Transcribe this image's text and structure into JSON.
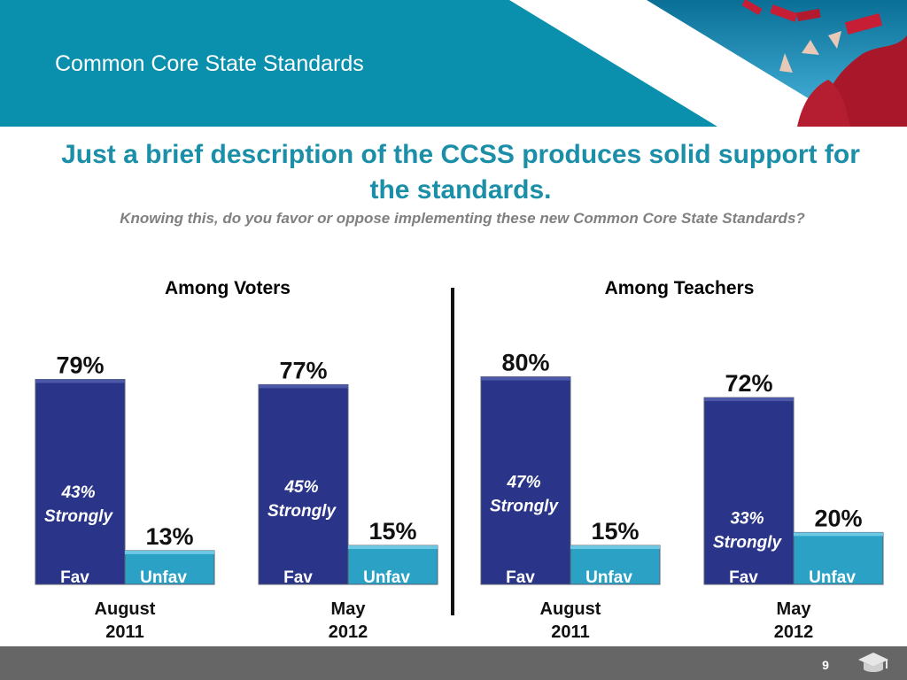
{
  "header": {
    "title": "Common Core State Standards"
  },
  "headline": "Just a brief description of the CCSS produces solid support for the standards.",
  "question": "Knowing this, do you favor or oppose implementing these new Common Core State Standards?",
  "footer": {
    "page_number": "9",
    "logo_icon": "graduation-cap-icon"
  },
  "colors": {
    "header_teal": "#0a8fad",
    "headline_teal": "#1b8fa8",
    "fav_bar": "#2a3589",
    "unfav_bar": "#2aa1c5",
    "footer": "#666666"
  },
  "chart_data": {
    "type": "bar",
    "ylim": [
      0,
      100
    ],
    "panels": [
      {
        "label": "Among Voters",
        "groups": [
          {
            "category": [
              "August",
              "2011"
            ],
            "fav": {
              "label": "Fav",
              "value": 79,
              "value_label": "79%",
              "strongly": 43,
              "strongly_label": [
                "43%",
                "Strongly"
              ]
            },
            "unfav": {
              "label": "Unfav",
              "value": 13,
              "value_label": "13%"
            }
          },
          {
            "category": [
              "May",
              "2012"
            ],
            "fav": {
              "label": "Fav",
              "value": 77,
              "value_label": "77%",
              "strongly": 45,
              "strongly_label": [
                "45%",
                "Strongly"
              ]
            },
            "unfav": {
              "label": "Unfav",
              "value": 15,
              "value_label": "15%"
            }
          }
        ]
      },
      {
        "label": "Among Teachers",
        "groups": [
          {
            "category": [
              "August",
              "2011"
            ],
            "fav": {
              "label": "Fav",
              "value": 80,
              "value_label": "80%",
              "strongly": 47,
              "strongly_label": [
                "47%",
                "Strongly"
              ]
            },
            "unfav": {
              "label": "Unfav",
              "value": 15,
              "value_label": "15%"
            }
          },
          {
            "category": [
              "May",
              "2012"
            ],
            "fav": {
              "label": "Fav",
              "value": 72,
              "value_label": "72%",
              "strongly": 33,
              "strongly_label": [
                "33%",
                "Strongly"
              ]
            },
            "unfav": {
              "label": "Unfav",
              "value": 20,
              "value_label": "20%"
            }
          }
        ]
      }
    ]
  }
}
